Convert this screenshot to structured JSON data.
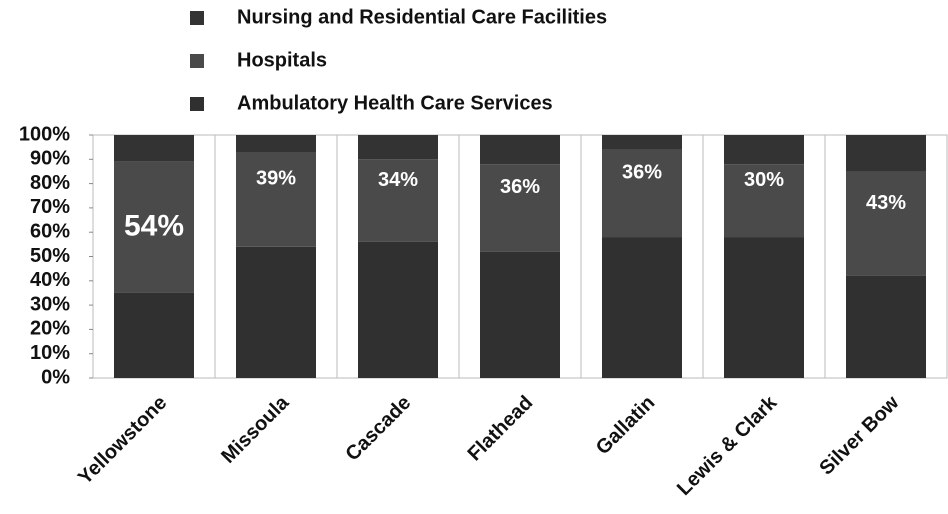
{
  "chart_data": {
    "type": "stacked_bar",
    "categories": [
      "Yellowstone",
      "Missoula",
      "Cascade",
      "Flathead",
      "Gallatin",
      "Lewis & Clark",
      "Silver Bow"
    ],
    "series": [
      {
        "name": "Ambulatory Health Care Services",
        "color": "#303030",
        "values": [
          35,
          54,
          56,
          52,
          58,
          58,
          42
        ]
      },
      {
        "name": "Hospitals",
        "color": "#4a4a4a",
        "values": [
          54,
          39,
          34,
          36,
          36,
          30,
          43
        ],
        "value_labels": [
          "54%",
          "39%",
          "34%",
          "36%",
          "36%",
          "30%",
          "43%"
        ]
      },
      {
        "name": "Nursing and Residential Care Facilities",
        "color": "#333333",
        "values": [
          11,
          7,
          10,
          12,
          6,
          12,
          15
        ]
      }
    ],
    "legend_order": [
      2,
      1,
      0
    ],
    "ylim": [
      0,
      100
    ],
    "yticks": [
      {
        "value": 0,
        "label": "0%"
      },
      {
        "value": 10,
        "label": "10%"
      },
      {
        "value": 20,
        "label": "20%"
      },
      {
        "value": 30,
        "label": "30%"
      },
      {
        "value": 40,
        "label": "40%"
      },
      {
        "value": 50,
        "label": "50%"
      },
      {
        "value": 60,
        "label": "60%"
      },
      {
        "value": 70,
        "label": "70%"
      },
      {
        "value": 80,
        "label": "80%"
      },
      {
        "value": 90,
        "label": "90%"
      },
      {
        "value": 100,
        "label": "100%"
      }
    ]
  }
}
